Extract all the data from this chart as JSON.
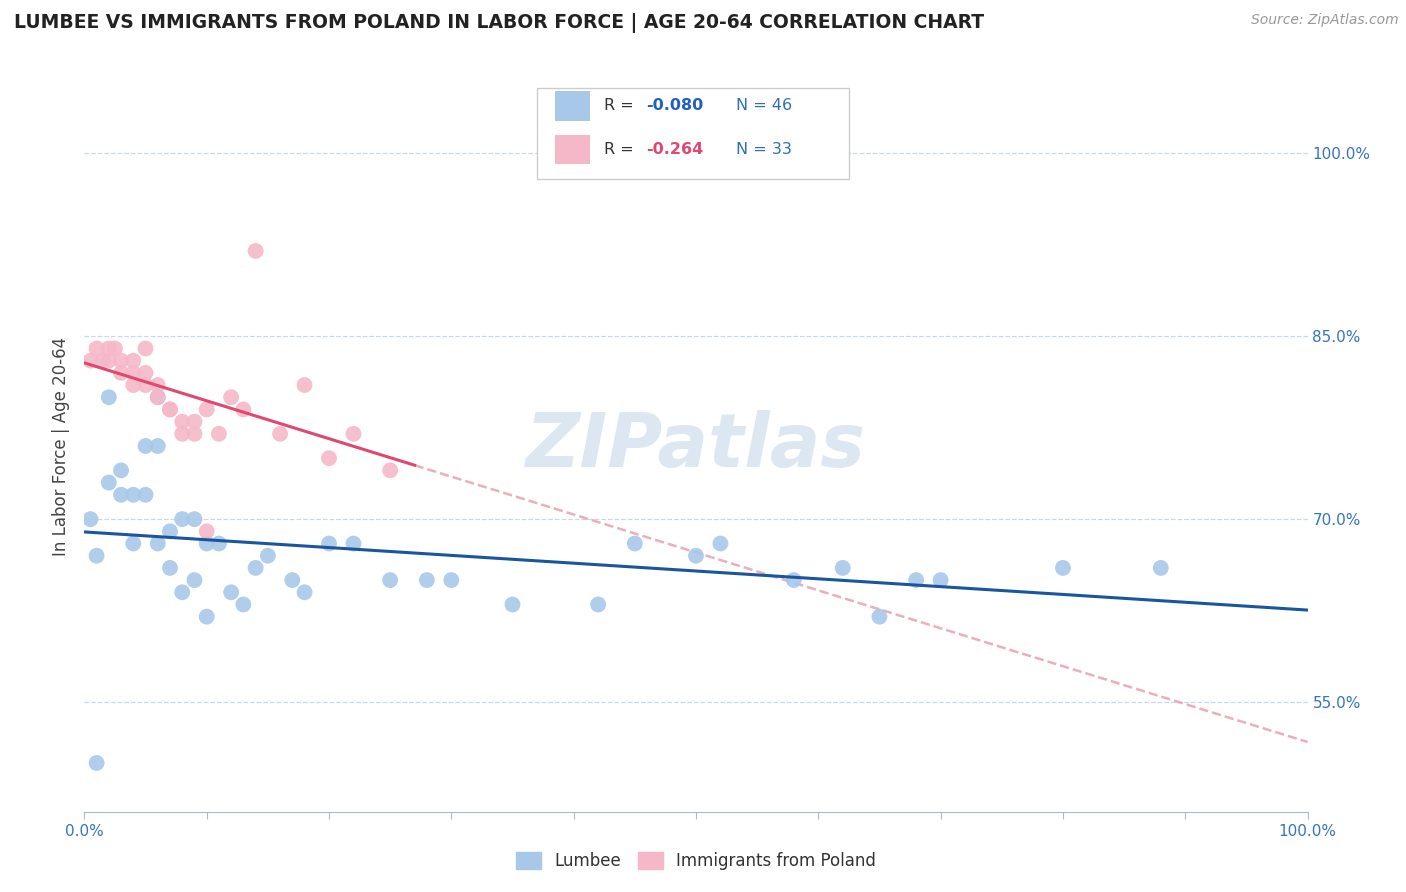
{
  "title": "LUMBEE VS IMMIGRANTS FROM POLAND IN LABOR FORCE | AGE 20-64 CORRELATION CHART",
  "source_text": "Source: ZipAtlas.com",
  "ylabel": "In Labor Force | Age 20-64",
  "xlim": [
    0.0,
    1.0
  ],
  "ylim": [
    0.46,
    1.06
  ],
  "x_ticks": [
    0.0,
    0.1,
    0.2,
    0.3,
    0.4,
    0.5,
    0.6,
    0.7,
    0.8,
    0.9,
    1.0
  ],
  "x_tick_labels": [
    "0.0%",
    "",
    "",
    "",
    "",
    "",
    "",
    "",
    "",
    "",
    "100.0%"
  ],
  "y_tick_labels": [
    "55.0%",
    "70.0%",
    "85.0%",
    "100.0%"
  ],
  "y_ticks": [
    0.55,
    0.7,
    0.85,
    1.0
  ],
  "lumbee_color": "#a8c8ea",
  "poland_color": "#f5b8c8",
  "lumbee_line_color": "#1a56a0",
  "poland_line_color": "#e04870",
  "poland_dash_color": "#e8a0b0",
  "watermark": "ZIPatlas",
  "lumbee_x": [
    0.005,
    0.01,
    0.02,
    0.02,
    0.03,
    0.03,
    0.04,
    0.04,
    0.05,
    0.05,
    0.06,
    0.06,
    0.06,
    0.07,
    0.07,
    0.08,
    0.08,
    0.09,
    0.09,
    0.1,
    0.1,
    0.11,
    0.12,
    0.13,
    0.14,
    0.15,
    0.17,
    0.18,
    0.2,
    0.22,
    0.25,
    0.28,
    0.3,
    0.35,
    0.42,
    0.45,
    0.5,
    0.52,
    0.58,
    0.62,
    0.65,
    0.68,
    0.7,
    0.8,
    0.88,
    0.01
  ],
  "lumbee_y": [
    0.7,
    0.67,
    0.73,
    0.8,
    0.72,
    0.74,
    0.72,
    0.68,
    0.76,
    0.72,
    0.8,
    0.76,
    0.68,
    0.69,
    0.66,
    0.64,
    0.7,
    0.7,
    0.65,
    0.62,
    0.68,
    0.68,
    0.64,
    0.63,
    0.66,
    0.67,
    0.65,
    0.64,
    0.68,
    0.68,
    0.65,
    0.65,
    0.65,
    0.63,
    0.63,
    0.68,
    0.67,
    0.68,
    0.65,
    0.66,
    0.62,
    0.65,
    0.65,
    0.66,
    0.66,
    0.5
  ],
  "poland_x": [
    0.005,
    0.01,
    0.015,
    0.02,
    0.02,
    0.025,
    0.03,
    0.03,
    0.04,
    0.04,
    0.04,
    0.05,
    0.05,
    0.05,
    0.06,
    0.06,
    0.07,
    0.07,
    0.08,
    0.08,
    0.09,
    0.09,
    0.1,
    0.11,
    0.12,
    0.13,
    0.16,
    0.18,
    0.2,
    0.22,
    0.25,
    0.14,
    0.1
  ],
  "poland_y": [
    0.83,
    0.84,
    0.83,
    0.84,
    0.83,
    0.84,
    0.83,
    0.82,
    0.83,
    0.82,
    0.81,
    0.84,
    0.82,
    0.81,
    0.81,
    0.8,
    0.79,
    0.79,
    0.78,
    0.77,
    0.78,
    0.77,
    0.79,
    0.77,
    0.8,
    0.79,
    0.77,
    0.81,
    0.75,
    0.77,
    0.74,
    0.92,
    0.69
  ]
}
